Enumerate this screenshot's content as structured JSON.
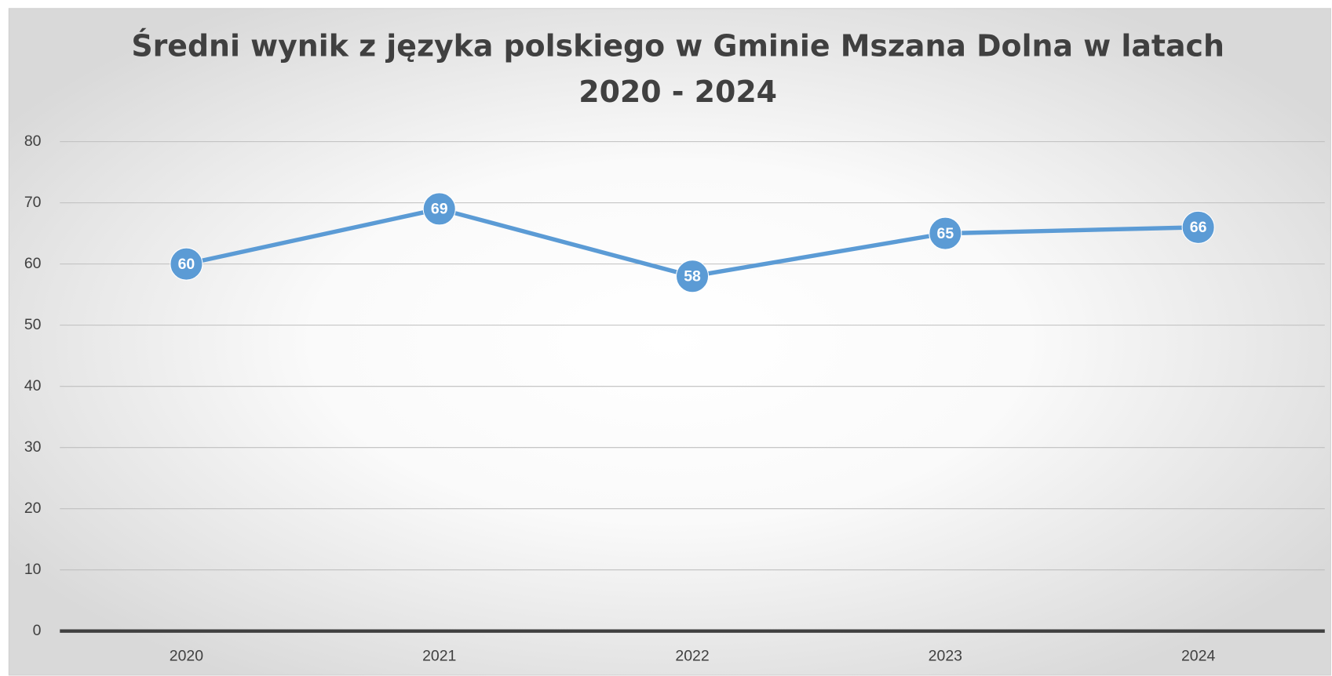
{
  "chart_data": {
    "type": "line",
    "title": "Średni wynik z języka polskiego w Gminie Mszana Dolna w latach 2020 - 2024",
    "categories": [
      "2020",
      "2021",
      "2022",
      "2023",
      "2024"
    ],
    "values": [
      60,
      69,
      58,
      65,
      66
    ],
    "color": "#5b9bd5",
    "ylim": [
      0,
      80
    ],
    "yticks": [
      0,
      10,
      20,
      30,
      40,
      50,
      60,
      70,
      80
    ],
    "grid": true,
    "data_labels": true
  }
}
